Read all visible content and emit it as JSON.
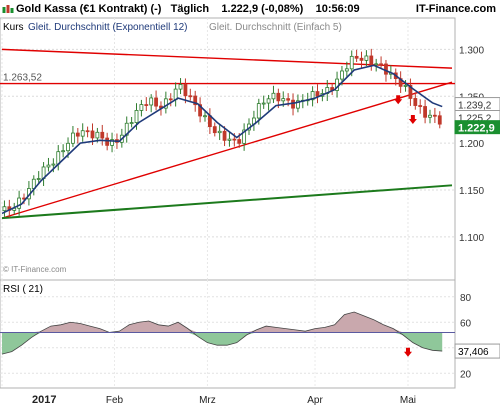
{
  "header": {
    "instrument": "Gold Kassa (€1 Kontrakt) (-)",
    "interval": "Täglich",
    "price": "1.222,9",
    "change": "(-0,08%)",
    "time": "10:56:09",
    "site": "IT-Finance.com"
  },
  "legend": {
    "kurs": "Kurs",
    "ema": "Gleit. Durchschnitt (Exponentiell 12)",
    "sma": "Gleit. Durchschnitt (Einfach 5)"
  },
  "watermark": "© IT-Finance.com",
  "colors": {
    "price_up": "#2f7d2f",
    "price_down": "#c0392b",
    "ema": "#1f3a7a",
    "sma": "#7a7a7a",
    "resistance": "#e00000",
    "support_green": "#1c7a1c",
    "rsi_above": "#c9a8ad",
    "rsi_below": "#8fc79a",
    "rsi_line": "#444444",
    "price_label_bg": "#1a8f2f"
  },
  "chart_data": [
    {
      "type": "candlestick",
      "title": "Gold Kassa (€1 Kontrakt)",
      "y_axis": {
        "ticks": [
          1.1,
          1.15,
          1.2,
          1.25,
          1.3
        ],
        "tick_labels": [
          "1.100",
          "1.150",
          "1.200",
          "1.250",
          "1.300"
        ],
        "range": [
          1.07,
          1.31
        ]
      },
      "x_axis": {
        "labels": [
          "2017",
          "Feb",
          "Mrz",
          "Apr",
          "Mai"
        ],
        "label_positions": [
          0,
          23,
          42,
          64,
          83
        ],
        "range": [
          0,
          92
        ]
      },
      "close_series": [
        [
          0,
          1.128
        ],
        [
          2,
          1.13
        ],
        [
          4,
          1.14
        ],
        [
          6,
          1.155
        ],
        [
          8,
          1.17
        ],
        [
          10,
          1.178
        ],
        [
          12,
          1.19
        ],
        [
          14,
          1.205
        ],
        [
          16,
          1.213
        ],
        [
          18,
          1.21
        ],
        [
          20,
          1.208
        ],
        [
          22,
          1.198
        ],
        [
          24,
          1.205
        ],
        [
          26,
          1.222
        ],
        [
          28,
          1.237
        ],
        [
          30,
          1.247
        ],
        [
          32,
          1.238
        ],
        [
          34,
          1.245
        ],
        [
          36,
          1.262
        ],
        [
          38,
          1.252
        ],
        [
          40,
          1.236
        ],
        [
          42,
          1.222
        ],
        [
          44,
          1.21
        ],
        [
          46,
          1.205
        ],
        [
          48,
          1.2
        ],
        [
          50,
          1.215
        ],
        [
          52,
          1.235
        ],
        [
          54,
          1.248
        ],
        [
          56,
          1.25
        ],
        [
          58,
          1.245
        ],
        [
          60,
          1.24
        ],
        [
          62,
          1.248
        ],
        [
          64,
          1.252
        ],
        [
          66,
          1.254
        ],
        [
          68,
          1.262
        ],
        [
          70,
          1.28
        ],
        [
          72,
          1.292
        ],
        [
          74,
          1.29
        ],
        [
          76,
          1.286
        ],
        [
          78,
          1.28
        ],
        [
          80,
          1.27
        ],
        [
          82,
          1.262
        ],
        [
          84,
          1.245
        ],
        [
          86,
          1.232
        ],
        [
          88,
          1.228
        ],
        [
          90,
          1.223
        ]
      ],
      "ema12": [
        [
          0,
          1.125
        ],
        [
          4,
          1.135
        ],
        [
          8,
          1.16
        ],
        [
          12,
          1.18
        ],
        [
          16,
          1.2
        ],
        [
          20,
          1.203
        ],
        [
          24,
          1.202
        ],
        [
          28,
          1.222
        ],
        [
          32,
          1.235
        ],
        [
          36,
          1.248
        ],
        [
          40,
          1.242
        ],
        [
          44,
          1.222
        ],
        [
          48,
          1.206
        ],
        [
          52,
          1.222
        ],
        [
          56,
          1.24
        ],
        [
          60,
          1.243
        ],
        [
          64,
          1.248
        ],
        [
          68,
          1.257
        ],
        [
          72,
          1.278
        ],
        [
          76,
          1.283
        ],
        [
          80,
          1.274
        ],
        [
          84,
          1.258
        ],
        [
          88,
          1.243
        ],
        [
          90,
          1.239
        ]
      ],
      "sma5_last": 1.2252,
      "price_labels": [
        {
          "value": 1.239,
          "text": "1.239,2"
        },
        {
          "value": 1.2252,
          "text": "1.225,2"
        },
        {
          "value": 1.2229,
          "text": "1.222,9"
        }
      ],
      "horizontal_line": {
        "value": 1.2635,
        "text": "1.263,52"
      },
      "trendlines": [
        {
          "name": "resistance-falling",
          "from": [
            0,
            1.3
          ],
          "to": [
            92,
            1.28
          ]
        },
        {
          "name": "support-rising",
          "from": [
            0,
            1.12
          ],
          "to": [
            92,
            1.265
          ]
        },
        {
          "name": "support-long",
          "from": [
            0,
            1.12
          ],
          "to": [
            92,
            1.155
          ]
        }
      ],
      "sell_arrows": [
        81,
        84
      ]
    },
    {
      "type": "area",
      "title": "RSI ( 21)",
      "y_axis": {
        "ticks": [
          20,
          40,
          60,
          80
        ],
        "tick_labels": [
          "20",
          "40",
          "60",
          "80"
        ],
        "range": [
          10,
          90
        ]
      },
      "reference_line": 52,
      "x": [
        0,
        2,
        4,
        6,
        8,
        10,
        12,
        14,
        16,
        18,
        20,
        22,
        24,
        26,
        28,
        30,
        32,
        34,
        36,
        38,
        40,
        42,
        44,
        46,
        48,
        50,
        52,
        54,
        56,
        58,
        60,
        62,
        64,
        66,
        68,
        70,
        72,
        74,
        76,
        78,
        80,
        82,
        84,
        86,
        88,
        90
      ],
      "values": [
        35,
        37,
        42,
        48,
        53,
        57,
        58,
        60,
        59,
        57,
        55,
        52,
        53,
        58,
        60,
        61,
        58,
        57,
        60,
        55,
        49,
        44,
        42,
        42,
        44,
        50,
        54,
        57,
        56,
        55,
        54,
        53,
        55,
        56,
        58,
        66,
        68,
        65,
        62,
        58,
        55,
        50,
        44,
        40,
        38,
        37.4
      ],
      "last_label": "37,406",
      "sell_arrow": 83
    }
  ]
}
